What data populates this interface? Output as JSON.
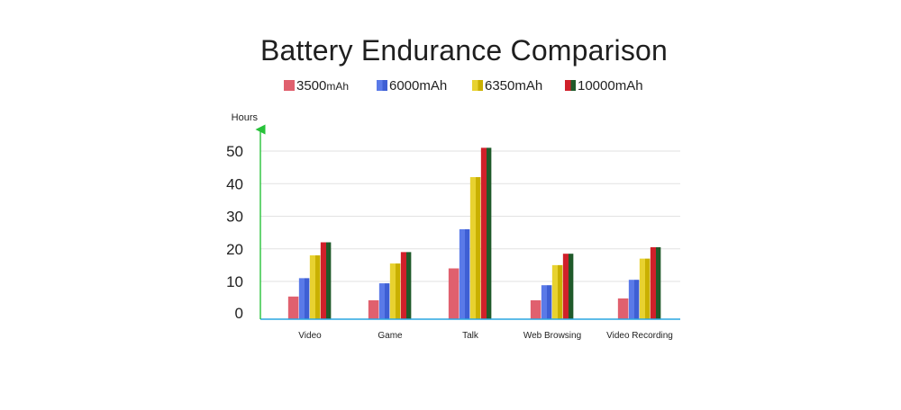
{
  "chart_data": {
    "type": "bar",
    "title": "Battery Endurance Comparison",
    "ylabel": "Hours",
    "xlabel": "",
    "categories": [
      "Video",
      "Game",
      "Talk",
      "Web Browsing",
      "Video Recording"
    ],
    "yticks": [
      "0",
      "10",
      "20",
      "30",
      "40",
      "50"
    ],
    "ylim": [
      0,
      52
    ],
    "grid": true,
    "legend_position": "top",
    "series": [
      {
        "name": "3500mAh",
        "name_main": "3500",
        "name_unit": "mAh",
        "color": "#e0606e",
        "dark": "#e0606e",
        "values": [
          6,
          5,
          14,
          5,
          5.5
        ]
      },
      {
        "name": "6000mAh",
        "color": "#5a7ae8",
        "dark": "#3e5fd4",
        "values": [
          11,
          9.5,
          26,
          9,
          10.5
        ]
      },
      {
        "name": "6350mAh",
        "color": "#e8d230",
        "dark": "#c9b000",
        "values": [
          18,
          15.5,
          42,
          15,
          17
        ]
      },
      {
        "name": "10000mAh",
        "color": "#d0202a",
        "dark": "#1f5a2a",
        "values": [
          22,
          19,
          51,
          18.5,
          20.5
        ]
      }
    ],
    "colors": {
      "axis_x": "#29a6e0",
      "axis_y": "#27c23a",
      "grid": "#e2e2e2"
    }
  }
}
